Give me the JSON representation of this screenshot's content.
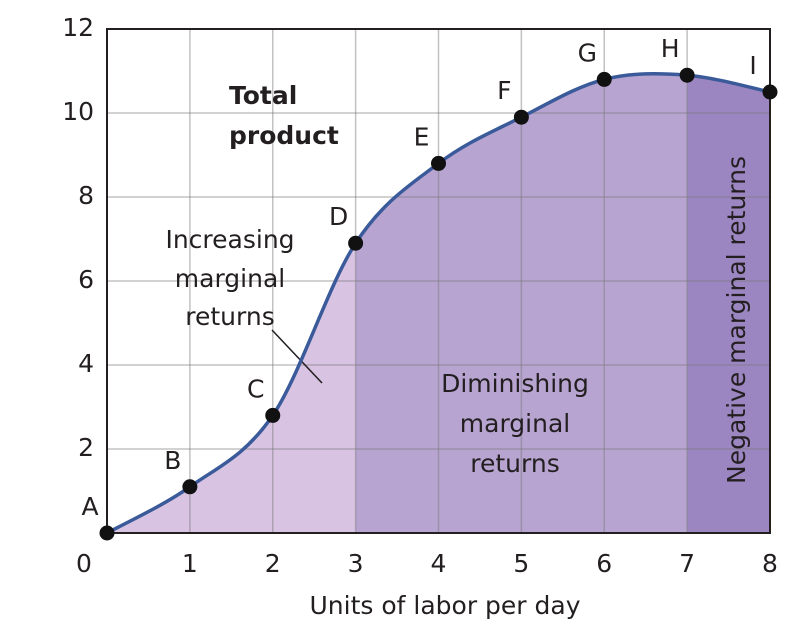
{
  "chart_data": {
    "type": "line",
    "annotation": [
      "Total",
      "product"
    ],
    "x_label": "Units of labor per day",
    "x": [
      0,
      1,
      2,
      3,
      4,
      5,
      6,
      7,
      8
    ],
    "values": [
      0,
      1.1,
      2.8,
      6.9,
      8.8,
      9.9,
      10.8,
      10.9,
      10.5
    ],
    "point_labels": [
      "A",
      "B",
      "C",
      "D",
      "E",
      "F",
      "G",
      "H",
      "I"
    ],
    "color": "#3a5a9a",
    "xlim": [
      0,
      8
    ],
    "ylim": [
      0,
      12
    ],
    "xticks": [
      0,
      1,
      2,
      3,
      4,
      5,
      6,
      7,
      8
    ],
    "yticks": [
      2,
      4,
      6,
      8,
      10,
      12
    ],
    "grid": true,
    "regions": [
      {
        "from": 0,
        "to": 3,
        "label": [
          "Increasing",
          "marginal",
          "returns"
        ],
        "color": "#d8c3e2"
      },
      {
        "from": 3,
        "to": 7,
        "label": [
          "Diminishing",
          "marginal",
          "returns"
        ],
        "color": "#b7a4d1"
      },
      {
        "from": 7,
        "to": 8,
        "label": [
          "Negative marginal returns"
        ],
        "color": "#9c86c2"
      }
    ]
  }
}
